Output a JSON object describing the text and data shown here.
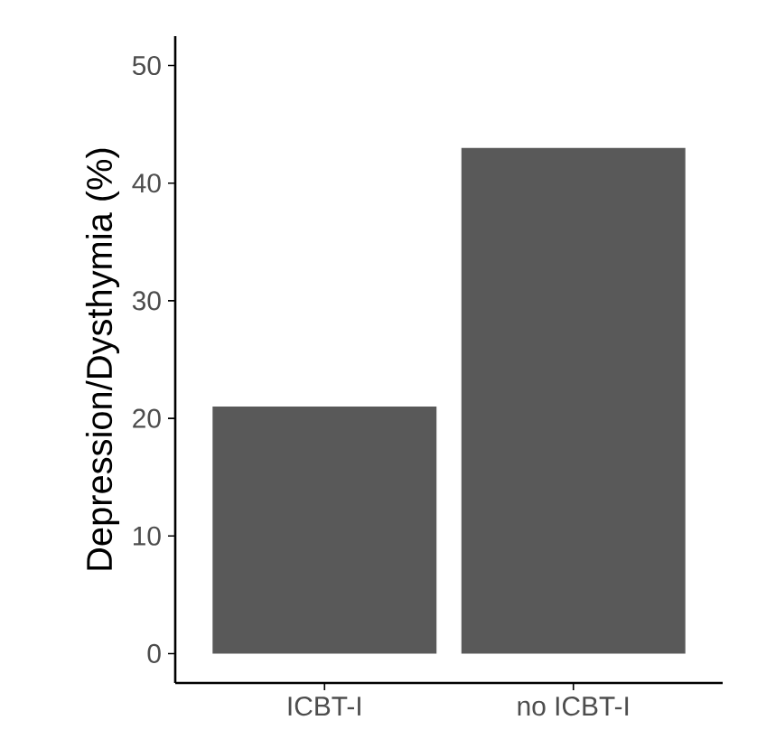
{
  "chart_data": {
    "type": "bar",
    "ylabel": "Depression/Dysthymia (%)",
    "categories": [
      "ICBT-I",
      "no ICBT-I"
    ],
    "values": [
      21,
      43
    ],
    "color": "#595959",
    "ylim": [
      -2.5,
      52.5
    ],
    "yticks": [
      0,
      10,
      20,
      30,
      40,
      50
    ],
    "grid": false
  }
}
